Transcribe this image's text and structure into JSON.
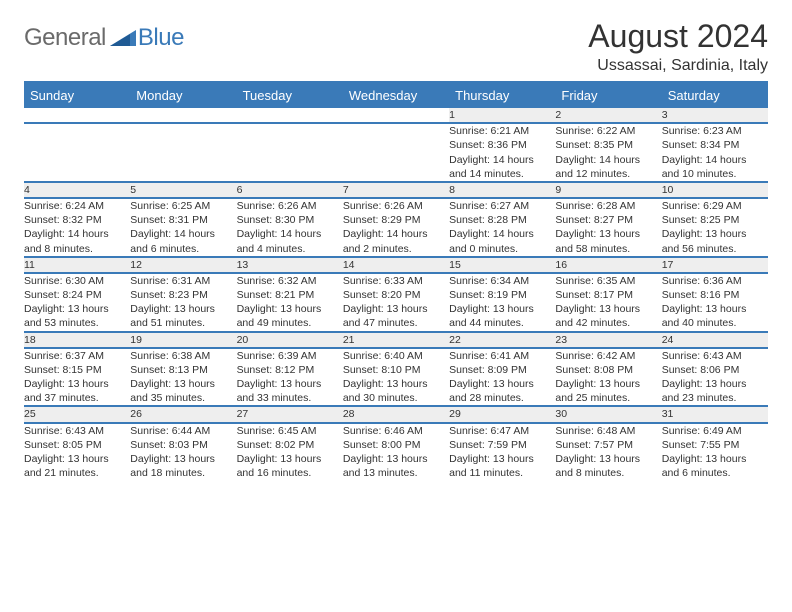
{
  "brand": {
    "part1": "General",
    "part2": "Blue"
  },
  "title": "August 2024",
  "location": "Ussassai, Sardinia, Italy",
  "colors": {
    "accent": "#3a7ab8",
    "header_text": "#ffffff",
    "daynum_bg": "#eeeeee",
    "body_text": "#333333",
    "logo_gray": "#6a6a6a",
    "background": "#ffffff"
  },
  "typography": {
    "title_fontsize": 32,
    "location_fontsize": 16,
    "weekday_fontsize": 13,
    "daynum_fontsize": 12,
    "cell_fontsize": 10.5
  },
  "weekdays": [
    "Sunday",
    "Monday",
    "Tuesday",
    "Wednesday",
    "Thursday",
    "Friday",
    "Saturday"
  ],
  "weeks": [
    [
      null,
      null,
      null,
      null,
      {
        "n": "1",
        "sunrise": "Sunrise: 6:21 AM",
        "sunset": "Sunset: 8:36 PM",
        "daylight1": "Daylight: 14 hours",
        "daylight2": "and 14 minutes."
      },
      {
        "n": "2",
        "sunrise": "Sunrise: 6:22 AM",
        "sunset": "Sunset: 8:35 PM",
        "daylight1": "Daylight: 14 hours",
        "daylight2": "and 12 minutes."
      },
      {
        "n": "3",
        "sunrise": "Sunrise: 6:23 AM",
        "sunset": "Sunset: 8:34 PM",
        "daylight1": "Daylight: 14 hours",
        "daylight2": "and 10 minutes."
      }
    ],
    [
      {
        "n": "4",
        "sunrise": "Sunrise: 6:24 AM",
        "sunset": "Sunset: 8:32 PM",
        "daylight1": "Daylight: 14 hours",
        "daylight2": "and 8 minutes."
      },
      {
        "n": "5",
        "sunrise": "Sunrise: 6:25 AM",
        "sunset": "Sunset: 8:31 PM",
        "daylight1": "Daylight: 14 hours",
        "daylight2": "and 6 minutes."
      },
      {
        "n": "6",
        "sunrise": "Sunrise: 6:26 AM",
        "sunset": "Sunset: 8:30 PM",
        "daylight1": "Daylight: 14 hours",
        "daylight2": "and 4 minutes."
      },
      {
        "n": "7",
        "sunrise": "Sunrise: 6:26 AM",
        "sunset": "Sunset: 8:29 PM",
        "daylight1": "Daylight: 14 hours",
        "daylight2": "and 2 minutes."
      },
      {
        "n": "8",
        "sunrise": "Sunrise: 6:27 AM",
        "sunset": "Sunset: 8:28 PM",
        "daylight1": "Daylight: 14 hours",
        "daylight2": "and 0 minutes."
      },
      {
        "n": "9",
        "sunrise": "Sunrise: 6:28 AM",
        "sunset": "Sunset: 8:27 PM",
        "daylight1": "Daylight: 13 hours",
        "daylight2": "and 58 minutes."
      },
      {
        "n": "10",
        "sunrise": "Sunrise: 6:29 AM",
        "sunset": "Sunset: 8:25 PM",
        "daylight1": "Daylight: 13 hours",
        "daylight2": "and 56 minutes."
      }
    ],
    [
      {
        "n": "11",
        "sunrise": "Sunrise: 6:30 AM",
        "sunset": "Sunset: 8:24 PM",
        "daylight1": "Daylight: 13 hours",
        "daylight2": "and 53 minutes."
      },
      {
        "n": "12",
        "sunrise": "Sunrise: 6:31 AM",
        "sunset": "Sunset: 8:23 PM",
        "daylight1": "Daylight: 13 hours",
        "daylight2": "and 51 minutes."
      },
      {
        "n": "13",
        "sunrise": "Sunrise: 6:32 AM",
        "sunset": "Sunset: 8:21 PM",
        "daylight1": "Daylight: 13 hours",
        "daylight2": "and 49 minutes."
      },
      {
        "n": "14",
        "sunrise": "Sunrise: 6:33 AM",
        "sunset": "Sunset: 8:20 PM",
        "daylight1": "Daylight: 13 hours",
        "daylight2": "and 47 minutes."
      },
      {
        "n": "15",
        "sunrise": "Sunrise: 6:34 AM",
        "sunset": "Sunset: 8:19 PM",
        "daylight1": "Daylight: 13 hours",
        "daylight2": "and 44 minutes."
      },
      {
        "n": "16",
        "sunrise": "Sunrise: 6:35 AM",
        "sunset": "Sunset: 8:17 PM",
        "daylight1": "Daylight: 13 hours",
        "daylight2": "and 42 minutes."
      },
      {
        "n": "17",
        "sunrise": "Sunrise: 6:36 AM",
        "sunset": "Sunset: 8:16 PM",
        "daylight1": "Daylight: 13 hours",
        "daylight2": "and 40 minutes."
      }
    ],
    [
      {
        "n": "18",
        "sunrise": "Sunrise: 6:37 AM",
        "sunset": "Sunset: 8:15 PM",
        "daylight1": "Daylight: 13 hours",
        "daylight2": "and 37 minutes."
      },
      {
        "n": "19",
        "sunrise": "Sunrise: 6:38 AM",
        "sunset": "Sunset: 8:13 PM",
        "daylight1": "Daylight: 13 hours",
        "daylight2": "and 35 minutes."
      },
      {
        "n": "20",
        "sunrise": "Sunrise: 6:39 AM",
        "sunset": "Sunset: 8:12 PM",
        "daylight1": "Daylight: 13 hours",
        "daylight2": "and 33 minutes."
      },
      {
        "n": "21",
        "sunrise": "Sunrise: 6:40 AM",
        "sunset": "Sunset: 8:10 PM",
        "daylight1": "Daylight: 13 hours",
        "daylight2": "and 30 minutes."
      },
      {
        "n": "22",
        "sunrise": "Sunrise: 6:41 AM",
        "sunset": "Sunset: 8:09 PM",
        "daylight1": "Daylight: 13 hours",
        "daylight2": "and 28 minutes."
      },
      {
        "n": "23",
        "sunrise": "Sunrise: 6:42 AM",
        "sunset": "Sunset: 8:08 PM",
        "daylight1": "Daylight: 13 hours",
        "daylight2": "and 25 minutes."
      },
      {
        "n": "24",
        "sunrise": "Sunrise: 6:43 AM",
        "sunset": "Sunset: 8:06 PM",
        "daylight1": "Daylight: 13 hours",
        "daylight2": "and 23 minutes."
      }
    ],
    [
      {
        "n": "25",
        "sunrise": "Sunrise: 6:43 AM",
        "sunset": "Sunset: 8:05 PM",
        "daylight1": "Daylight: 13 hours",
        "daylight2": "and 21 minutes."
      },
      {
        "n": "26",
        "sunrise": "Sunrise: 6:44 AM",
        "sunset": "Sunset: 8:03 PM",
        "daylight1": "Daylight: 13 hours",
        "daylight2": "and 18 minutes."
      },
      {
        "n": "27",
        "sunrise": "Sunrise: 6:45 AM",
        "sunset": "Sunset: 8:02 PM",
        "daylight1": "Daylight: 13 hours",
        "daylight2": "and 16 minutes."
      },
      {
        "n": "28",
        "sunrise": "Sunrise: 6:46 AM",
        "sunset": "Sunset: 8:00 PM",
        "daylight1": "Daylight: 13 hours",
        "daylight2": "and 13 minutes."
      },
      {
        "n": "29",
        "sunrise": "Sunrise: 6:47 AM",
        "sunset": "Sunset: 7:59 PM",
        "daylight1": "Daylight: 13 hours",
        "daylight2": "and 11 minutes."
      },
      {
        "n": "30",
        "sunrise": "Sunrise: 6:48 AM",
        "sunset": "Sunset: 7:57 PM",
        "daylight1": "Daylight: 13 hours",
        "daylight2": "and 8 minutes."
      },
      {
        "n": "31",
        "sunrise": "Sunrise: 6:49 AM",
        "sunset": "Sunset: 7:55 PM",
        "daylight1": "Daylight: 13 hours",
        "daylight2": "and 6 minutes."
      }
    ]
  ]
}
